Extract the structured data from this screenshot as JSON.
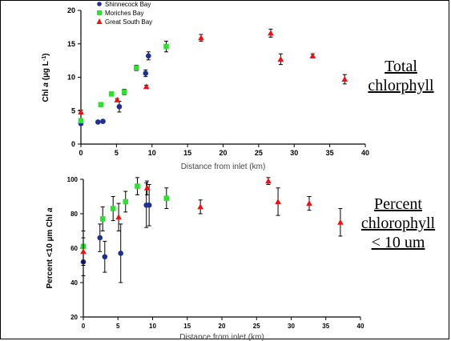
{
  "notes": {
    "top": [
      "Total",
      "chlorphyll"
    ],
    "bottom": [
      "Percent",
      "chlorophyll",
      "< 10 um"
    ]
  },
  "colors": {
    "Shinnecock Bay": "#1f2f8f",
    "Moriches Bay": "#33dd33",
    "Great South Bay": "#ee1111"
  },
  "chart_data": [
    {
      "type": "scatter",
      "title": "",
      "xlabel": "Distance from inlet (km)",
      "ylabel_parts": [
        "Chl ",
        "a",
        " (µg L",
        "-1",
        ")"
      ],
      "xlim": [
        0,
        40
      ],
      "ylim": [
        0,
        20
      ],
      "xticks": [
        0,
        5,
        10,
        15,
        20,
        25,
        30,
        35,
        40
      ],
      "yticks": [
        0,
        5,
        10,
        15,
        20
      ],
      "legend": "top-left",
      "series": [
        {
          "name": "Shinnecock Bay",
          "marker": "circle",
          "x": [
            0,
            2.4,
            3.1,
            5.4,
            9.1,
            9.5
          ],
          "y": [
            3.1,
            3.3,
            3.4,
            5.6,
            10.6,
            13.2
          ],
          "err": [
            0.3,
            0.2,
            0.2,
            0.8,
            0.5,
            0.6
          ]
        },
        {
          "name": "Moriches Bay",
          "marker": "square",
          "x": [
            0,
            2.8,
            4.3,
            6.1,
            7.8,
            12.0
          ],
          "y": [
            3.5,
            5.9,
            7.5,
            7.8,
            11.4,
            14.6
          ],
          "err": [
            0.3,
            0.2,
            0.3,
            0.4,
            0.4,
            0.8
          ]
        },
        {
          "name": "Great South Bay",
          "marker": "triangle",
          "x": [
            0,
            5.1,
            9.2,
            16.9,
            26.7,
            28.1,
            32.6,
            37.1
          ],
          "y": [
            4.8,
            6.6,
            8.6,
            15.9,
            16.6,
            12.7,
            13.2,
            9.7
          ],
          "err": [
            0.3,
            0.2,
            0.2,
            0.5,
            0.6,
            0.8,
            0.3,
            0.7
          ]
        }
      ]
    },
    {
      "type": "scatter",
      "title": "",
      "xlabel": "Distance from inlet (km)",
      "ylabel_parts": [
        "Percent <10 µm Chl ",
        "a"
      ],
      "xlim": [
        0,
        40
      ],
      "ylim": [
        20,
        100
      ],
      "xticks": [
        0,
        5,
        10,
        15,
        20,
        25,
        30,
        35,
        40
      ],
      "yticks": [
        20,
        40,
        60,
        80,
        100
      ],
      "series": [
        {
          "name": "Shinnecock Bay",
          "marker": "circle",
          "x": [
            0,
            2.4,
            3.1,
            5.4,
            9.1,
            9.5
          ],
          "y": [
            52,
            66,
            55,
            57,
            85,
            85
          ],
          "err": [
            8,
            8,
            9,
            17,
            13,
            12
          ]
        },
        {
          "name": "Moriches Bay",
          "marker": "square",
          "x": [
            0,
            2.8,
            4.3,
            6.1,
            7.8,
            12.0
          ],
          "y": [
            61,
            77,
            83,
            87,
            96,
            89
          ],
          "err": [
            9,
            7,
            7,
            6,
            5,
            6
          ]
        },
        {
          "name": "Great South Bay",
          "marker": "triangle",
          "x": [
            0,
            5.1,
            9.2,
            16.9,
            26.7,
            28.1,
            32.6,
            37.1
          ],
          "y": [
            58,
            78,
            95,
            84,
            99,
            87,
            86,
            75
          ],
          "err": [
            8,
            8,
            4,
            4,
            2,
            8,
            4,
            8
          ]
        }
      ]
    }
  ]
}
